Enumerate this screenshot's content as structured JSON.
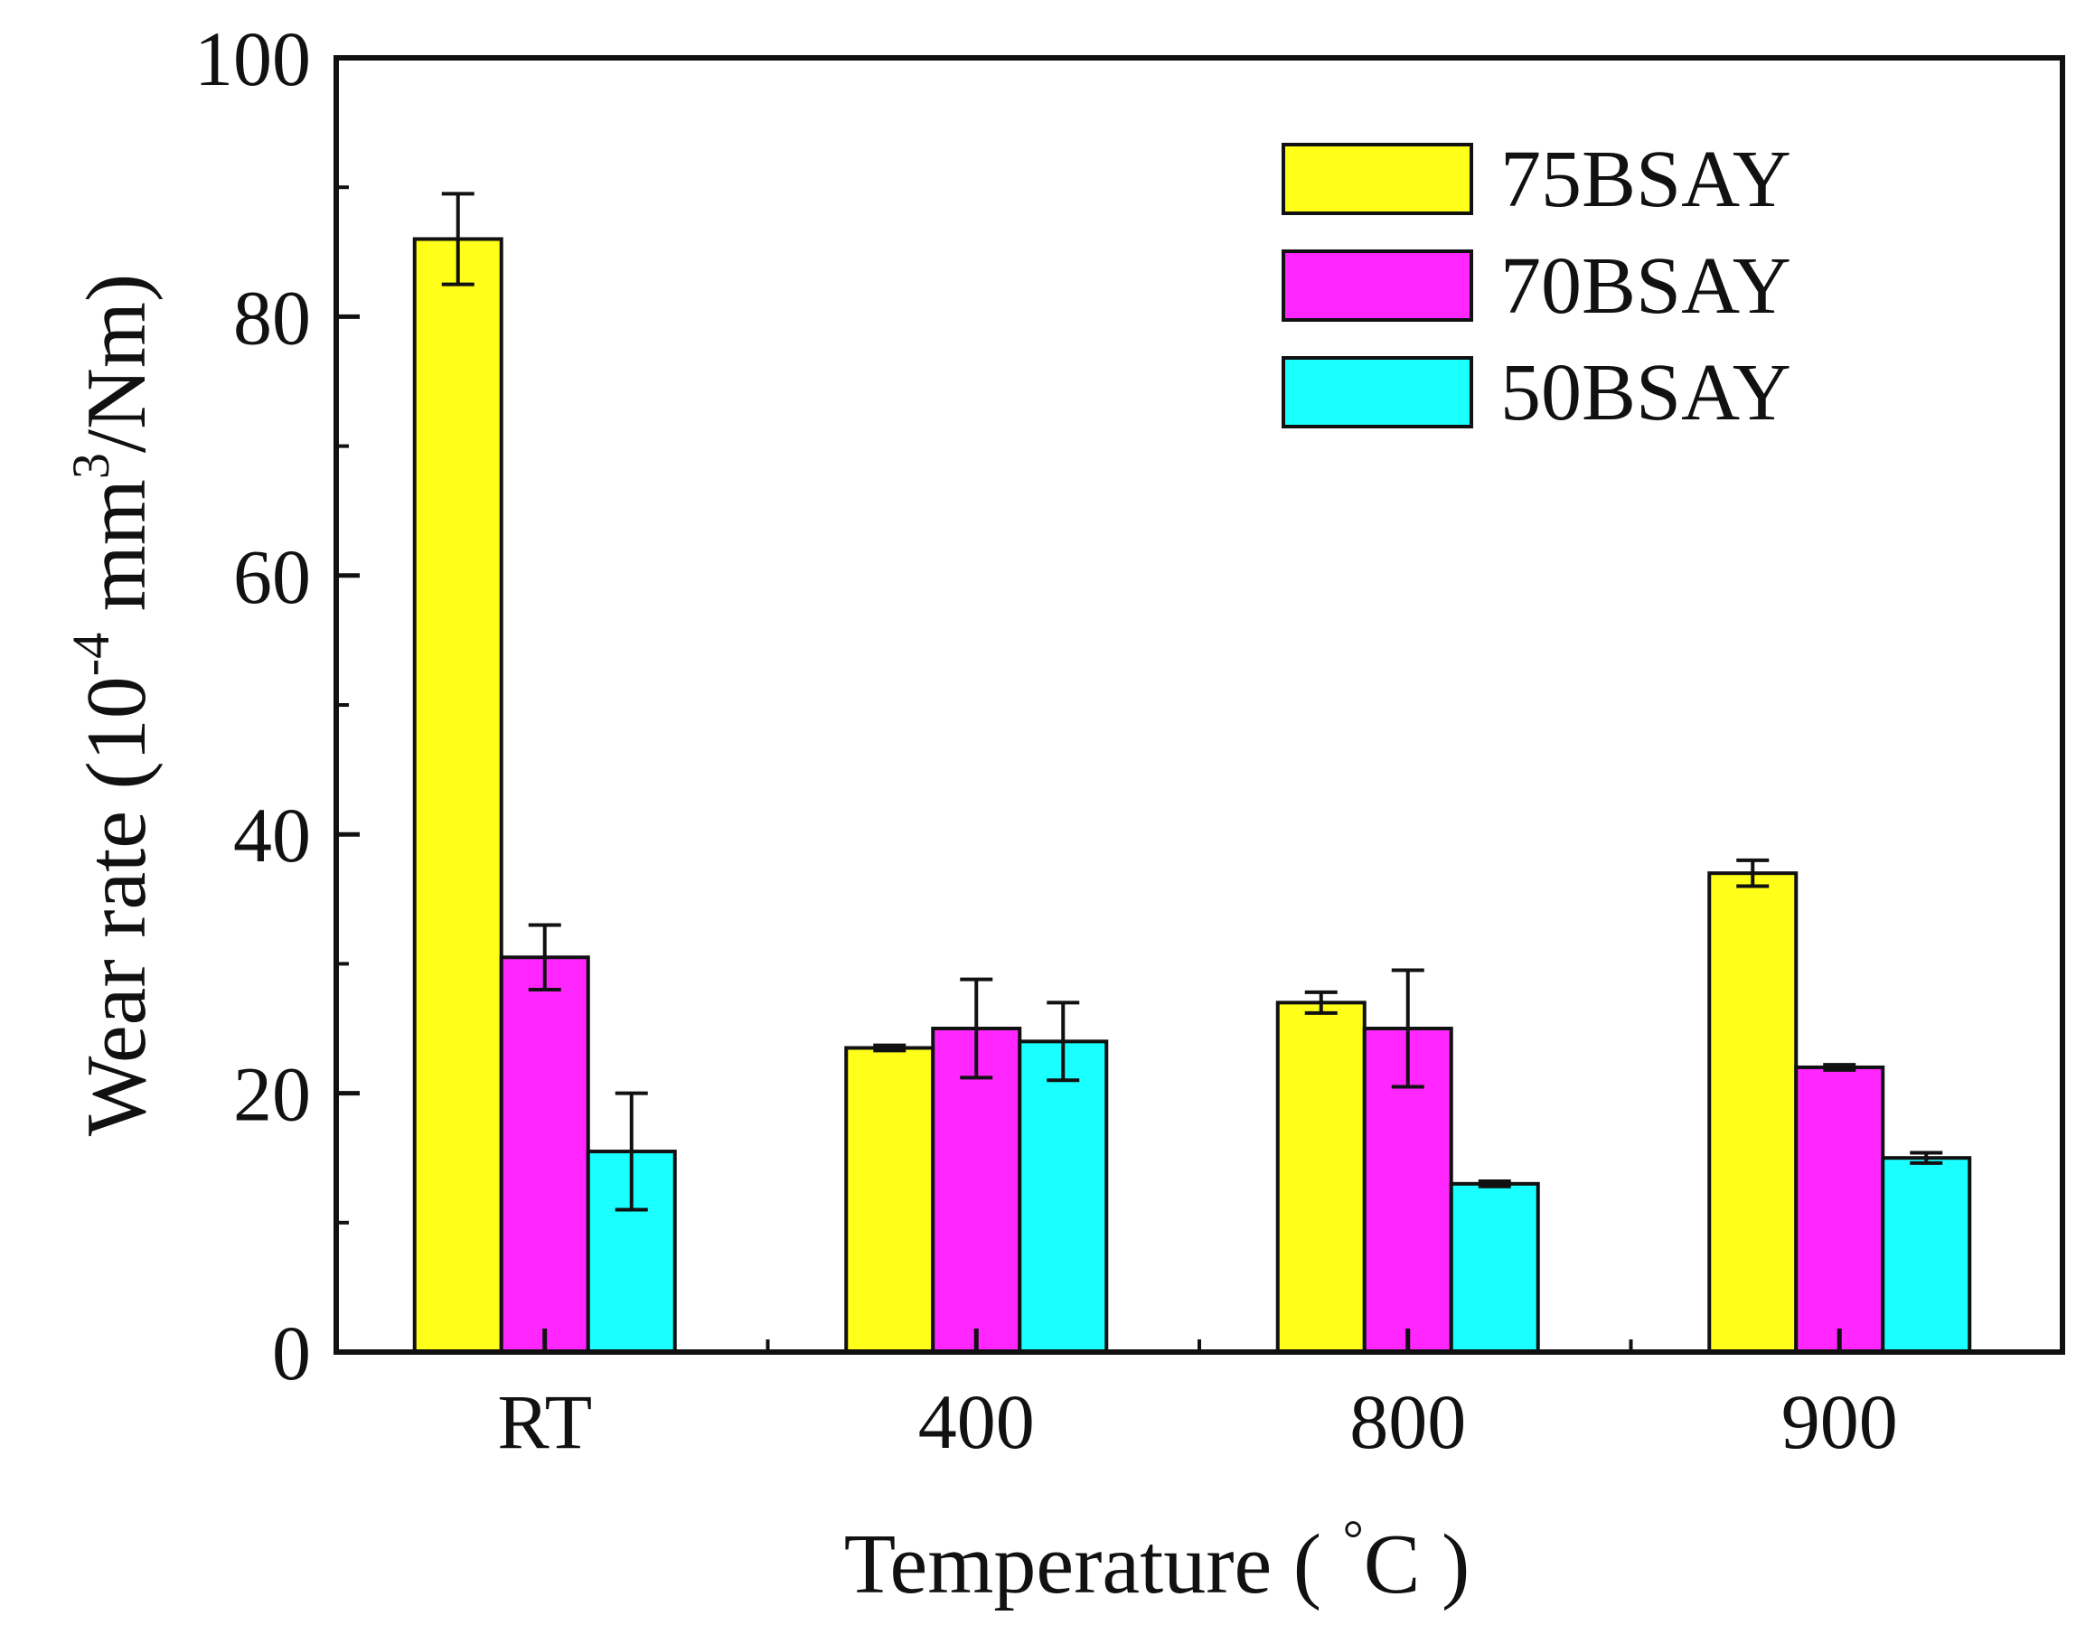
{
  "chart_data": {
    "type": "bar",
    "title": "",
    "xlabel": "Temperature ( °C )",
    "xlabel_parts": {
      "prefix": "Temperature ( ",
      "degree": "°",
      "unit": "C )"
    },
    "ylabel": "Wear rate (10^-4 mm^3/Nm)",
    "ylabel_parts": {
      "prefix": "Wear rate (10",
      "exp1": "-4",
      "middle": " mm",
      "exp2": "3",
      "suffix": "/Nm)"
    },
    "categories": [
      "RT",
      "400",
      "800",
      "900"
    ],
    "ylim": [
      0,
      100
    ],
    "yticks": [
      "0",
      "20",
      "40",
      "60",
      "80",
      "100"
    ],
    "grid": false,
    "legend_position": "top-right",
    "series": [
      {
        "name": "75BSAY",
        "color": "#ffff1a",
        "values": [
          86,
          23.5,
          27,
          37
        ],
        "errors": [
          3.5,
          0.2,
          0.8,
          1.0
        ]
      },
      {
        "name": "70BSAY",
        "color": "#ff26ff",
        "values": [
          30.5,
          25,
          25,
          22
        ],
        "errors": [
          2.5,
          3.8,
          4.5,
          0.2
        ]
      },
      {
        "name": "50BSAY",
        "color": "#1affff",
        "values": [
          15.5,
          24,
          13,
          15
        ],
        "errors": [
          4.5,
          3.0,
          0.2,
          0.4
        ]
      }
    ]
  }
}
